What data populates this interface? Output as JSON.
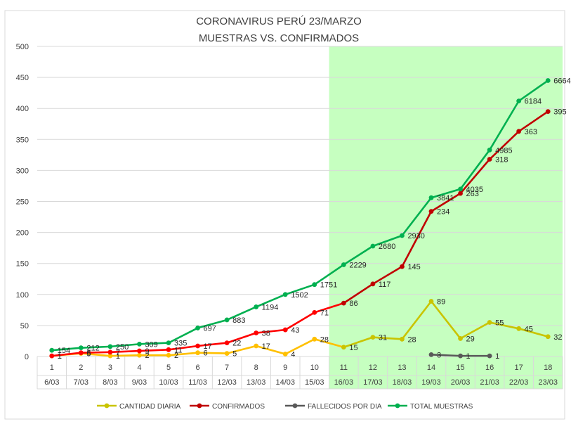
{
  "chart_data": {
    "type": "line",
    "title": "CORONAVIRUS PERÚ 23/MARZO",
    "subtitle": "MUESTRAS VS. CONFIRMADOS",
    "x_index": [
      "1",
      "2",
      "3",
      "4",
      "5",
      "6",
      "7",
      "8",
      "9",
      "10",
      "11",
      "12",
      "13",
      "14",
      "15",
      "16",
      "17",
      "18"
    ],
    "x_dates": [
      "6/03",
      "7/03",
      "8/03",
      "9/03",
      "10/03",
      "11/03",
      "12/03",
      "13/03",
      "14/03",
      "15/03",
      "16/03",
      "17/03",
      "18/03",
      "19/03",
      "20/03",
      "21/03",
      "22/03",
      "23/03"
    ],
    "ylim": [
      0,
      500
    ],
    "yticks": [
      0,
      50,
      100,
      150,
      200,
      250,
      300,
      350,
      400,
      450,
      500
    ],
    "grid": true,
    "highlight_range": [
      "11",
      "18"
    ],
    "highlight_color": "#c6ffc0",
    "legend_position": "bottom",
    "series": [
      {
        "name": "CANTIDAD DIARIA",
        "color": "#ffc000",
        "color_highlight": "#c9c400",
        "values": [
          1,
          5,
          1,
          2,
          2,
          6,
          5,
          17,
          4,
          28,
          15,
          31,
          28,
          89,
          29,
          55,
          45,
          32
        ],
        "labels": [
          "1",
          "5",
          "1",
          "2",
          "2",
          "6",
          "5",
          "17",
          "4",
          "28",
          "15",
          "31",
          "28",
          "89",
          "29",
          "55",
          "45",
          "32"
        ]
      },
      {
        "name": "CONFIRMADOS",
        "color": "#ff0000",
        "color_highlight": "#c00000",
        "values": [
          1,
          6,
          7,
          9,
          11,
          17,
          22,
          38,
          43,
          71,
          86,
          117,
          145,
          234,
          263,
          318,
          363,
          395
        ],
        "labels": [
          "1",
          "6",
          "7",
          "9",
          "11",
          "17",
          "22",
          "38",
          "43",
          "71",
          "86",
          "117",
          "145",
          "234",
          "263",
          "318",
          "363",
          "395"
        ]
      },
      {
        "name": "FALLECIDOS POR DIA",
        "color": "#595959",
        "color_highlight": "#595959",
        "x_start": 14,
        "values": [
          3,
          1,
          1
        ],
        "labels": [
          "3",
          "1",
          "1"
        ]
      },
      {
        "name": "TOTAL MUESTRAS",
        "color": "#00b050",
        "color_highlight": "#00b050",
        "values": [
          10,
          14,
          16,
          20,
          22,
          46,
          59,
          80,
          100,
          116,
          148,
          178,
          195,
          256,
          270,
          333,
          412,
          445
        ],
        "labels": [
          "154",
          "212",
          "250",
          "309",
          "335",
          "697",
          "883",
          "1194",
          "1502",
          "1751",
          "2229",
          "2680",
          "2930",
          "3841",
          "4035",
          "4985",
          "6184",
          "6664"
        ]
      }
    ]
  }
}
